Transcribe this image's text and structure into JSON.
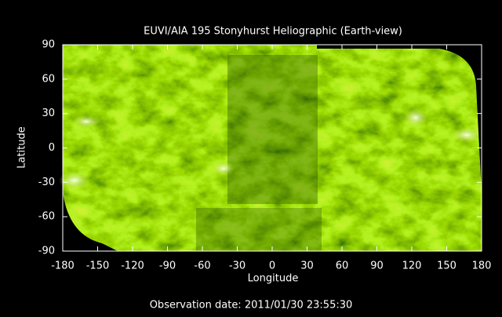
{
  "chart_data": {
    "type": "image",
    "title": "EUVI/AIA 195 Stonyhurst Heliographic (Earth-view)",
    "x_label": "Longitude",
    "y_label": "Latitude",
    "note": "Observation date: 2011/01/30 23:55:30",
    "xlim": [
      -180,
      180
    ],
    "ylim": [
      -90,
      90
    ],
    "xticks": [
      -180,
      -150,
      -120,
      -90,
      -60,
      -30,
      0,
      30,
      60,
      90,
      120,
      150,
      180
    ],
    "yticks": [
      -90,
      -60,
      -30,
      0,
      30,
      60,
      90
    ]
  }
}
